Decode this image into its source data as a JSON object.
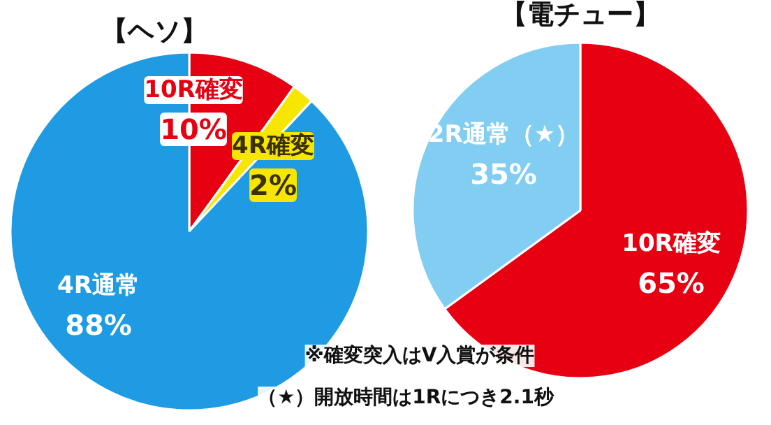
{
  "chart_data": [
    {
      "type": "pie",
      "title": "【ヘソ】",
      "categories": [
        "10R確変",
        "4R確変",
        "4R通常"
      ],
      "values": [
        10,
        2,
        88
      ],
      "value_labels": [
        "10%",
        "2%",
        "88%"
      ],
      "colors": [
        "#e60012",
        "#f7e600",
        "#1e9be2"
      ]
    },
    {
      "type": "pie",
      "title": "【電チュー】",
      "categories": [
        "10R確変",
        "2R通常（★）"
      ],
      "values": [
        65,
        35
      ],
      "value_labels": [
        "65%",
        "35%"
      ],
      "colors": [
        "#e60012",
        "#82cdf2"
      ],
      "annotations": [
        "※確変突入はV入賞が条件",
        "（★）開放時間は1Rにつき2.1秒"
      ]
    }
  ]
}
